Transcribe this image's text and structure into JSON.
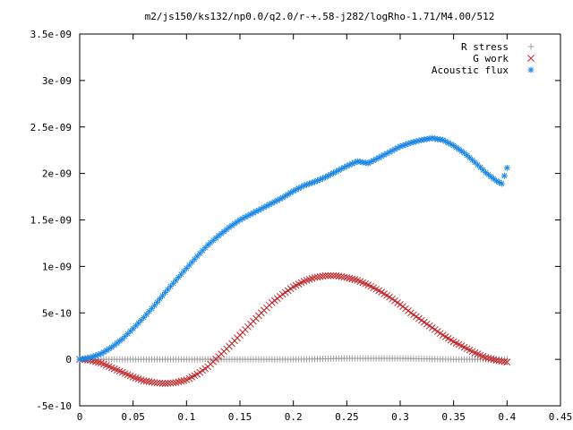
{
  "chart_data": {
    "type": "scatter",
    "title": "m2/js150/ks132/np0.0/q2.0/r-+.58-j282/logRho-1.71/M4.00/512",
    "xlabel": "",
    "ylabel": "",
    "xlim": [
      0,
      0.45
    ],
    "ylim": [
      -5e-10,
      3.5e-09
    ],
    "x_ticks": [
      "0",
      "0.05",
      "0.1",
      "0.15",
      "0.2",
      "0.25",
      "0.3",
      "0.35",
      "0.4",
      "0.45"
    ],
    "y_ticks": [
      "-5e-10",
      "0",
      "5e-10",
      "1e-09",
      "1.5e-09",
      "2e-09",
      "2.5e-09",
      "3e-09",
      "3.5e-09"
    ],
    "grid": false,
    "legend_position": "top-right",
    "series": [
      {
        "name": "R stress",
        "marker": "plus",
        "color": "#a0a0a0",
        "points": [
          [
            0.0,
            0.0
          ],
          [
            0.02,
            0.0
          ],
          [
            0.05,
            0.0
          ],
          [
            0.1,
            0.0
          ],
          [
            0.15,
            0.0
          ],
          [
            0.2,
            0.0
          ],
          [
            0.25,
            1e-11
          ],
          [
            0.3,
            1e-11
          ],
          [
            0.35,
            0.0
          ],
          [
            0.4,
            0.0
          ]
        ]
      },
      {
        "name": "G work",
        "marker": "cross",
        "color": "#c0282c",
        "points": [
          [
            0.0,
            0.0
          ],
          [
            0.01,
            -1e-11
          ],
          [
            0.02,
            -4e-11
          ],
          [
            0.03,
            -9e-11
          ],
          [
            0.04,
            -1.4e-10
          ],
          [
            0.05,
            -1.9e-10
          ],
          [
            0.06,
            -2.3e-10
          ],
          [
            0.07,
            -2.5e-10
          ],
          [
            0.08,
            -2.6e-10
          ],
          [
            0.09,
            -2.5e-10
          ],
          [
            0.1,
            -2.2e-10
          ],
          [
            0.11,
            -1.6e-10
          ],
          [
            0.12,
            -8e-11
          ],
          [
            0.13,
            3e-11
          ],
          [
            0.14,
            1.4e-10
          ],
          [
            0.15,
            2.6e-10
          ],
          [
            0.16,
            3.8e-10
          ],
          [
            0.17,
            5e-10
          ],
          [
            0.18,
            6.1e-10
          ],
          [
            0.19,
            7e-10
          ],
          [
            0.2,
            7.8e-10
          ],
          [
            0.21,
            8.4e-10
          ],
          [
            0.22,
            8.8e-10
          ],
          [
            0.23,
            9e-10
          ],
          [
            0.24,
            9e-10
          ],
          [
            0.25,
            8.8e-10
          ],
          [
            0.26,
            8.5e-10
          ],
          [
            0.27,
            8e-10
          ],
          [
            0.28,
            7.4e-10
          ],
          [
            0.29,
            6.7e-10
          ],
          [
            0.3,
            5.9e-10
          ],
          [
            0.31,
            5e-10
          ],
          [
            0.32,
            4.2e-10
          ],
          [
            0.33,
            3.4e-10
          ],
          [
            0.34,
            2.6e-10
          ],
          [
            0.35,
            1.9e-10
          ],
          [
            0.36,
            1.3e-10
          ],
          [
            0.37,
            7e-11
          ],
          [
            0.38,
            2e-11
          ],
          [
            0.39,
            -1e-11
          ],
          [
            0.4,
            -3e-11
          ]
        ]
      },
      {
        "name": "Acoustic flux",
        "marker": "star",
        "color": "#1e88e5",
        "points": [
          [
            0.0,
            0.0
          ],
          [
            0.01,
            2e-11
          ],
          [
            0.02,
            6e-11
          ],
          [
            0.03,
            1.3e-10
          ],
          [
            0.04,
            2.2e-10
          ],
          [
            0.05,
            3.3e-10
          ],
          [
            0.06,
            4.5e-10
          ],
          [
            0.07,
            5.8e-10
          ],
          [
            0.08,
            7.2e-10
          ],
          [
            0.09,
            8.5e-10
          ],
          [
            0.1,
            9.8e-10
          ],
          [
            0.11,
            1.11e-09
          ],
          [
            0.12,
            1.23e-09
          ],
          [
            0.13,
            1.33e-09
          ],
          [
            0.14,
            1.42e-09
          ],
          [
            0.15,
            1.5e-09
          ],
          [
            0.16,
            1.56e-09
          ],
          [
            0.17,
            1.62e-09
          ],
          [
            0.18,
            1.68e-09
          ],
          [
            0.19,
            1.74e-09
          ],
          [
            0.2,
            1.81e-09
          ],
          [
            0.21,
            1.87e-09
          ],
          [
            0.22,
            1.91e-09
          ],
          [
            0.23,
            1.96e-09
          ],
          [
            0.24,
            2.02e-09
          ],
          [
            0.25,
            2.08e-09
          ],
          [
            0.26,
            2.13e-09
          ],
          [
            0.27,
            2.11e-09
          ],
          [
            0.28,
            2.17e-09
          ],
          [
            0.29,
            2.23e-09
          ],
          [
            0.3,
            2.29e-09
          ],
          [
            0.31,
            2.33e-09
          ],
          [
            0.32,
            2.36e-09
          ],
          [
            0.33,
            2.38e-09
          ],
          [
            0.34,
            2.36e-09
          ],
          [
            0.35,
            2.3e-09
          ],
          [
            0.36,
            2.22e-09
          ],
          [
            0.37,
            2.12e-09
          ],
          [
            0.38,
            2.01e-09
          ],
          [
            0.39,
            1.92e-09
          ],
          [
            0.395,
            1.89e-09
          ],
          [
            0.4,
            2.06e-09
          ]
        ]
      }
    ]
  }
}
